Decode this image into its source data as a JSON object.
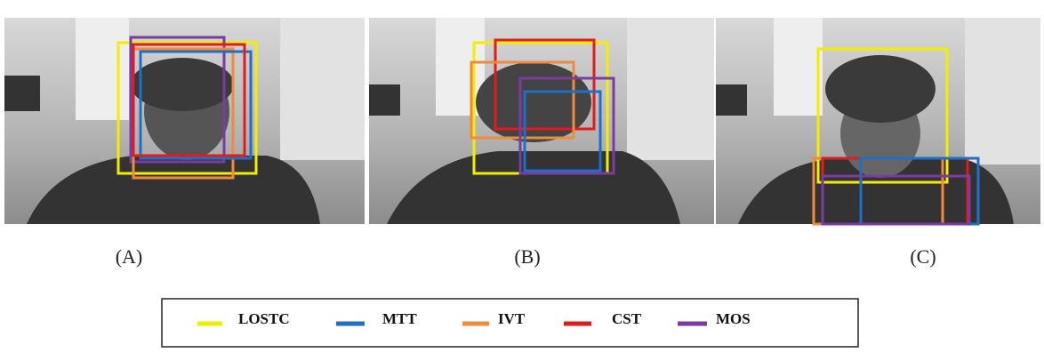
{
  "panels": [
    {
      "label": "(A)"
    },
    {
      "label": "(B)"
    },
    {
      "label": "(C)"
    }
  ],
  "legend": [
    {
      "label": "LOSTC",
      "color": "#f2ee00"
    },
    {
      "label": "MTT",
      "color": "#1f6fc8"
    },
    {
      "label": "IVT",
      "color": "#f08a3c"
    },
    {
      "label": "CST",
      "color": "#e01c1c"
    },
    {
      "label": "MOS",
      "color": "#7a3c9e"
    }
  ]
}
